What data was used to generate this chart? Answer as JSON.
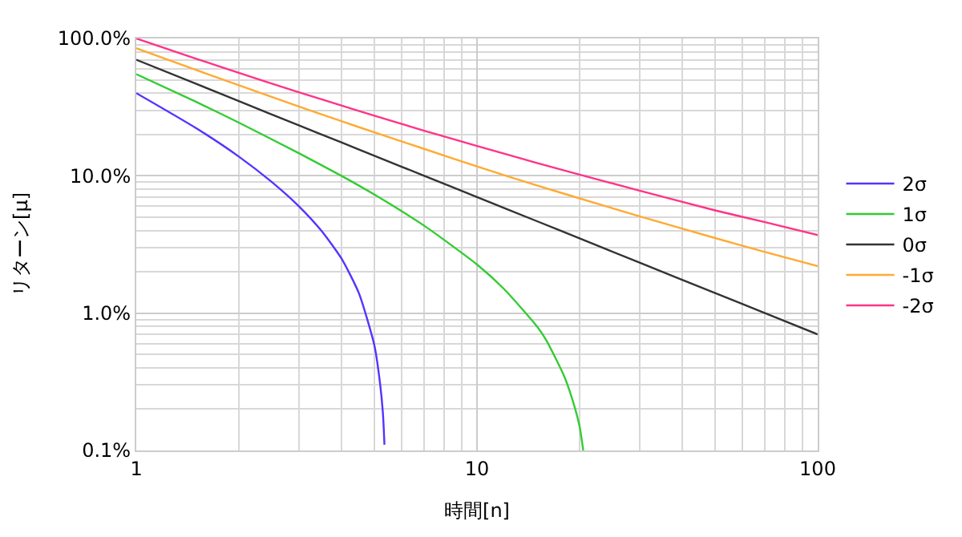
{
  "chart_data": {
    "type": "line",
    "xlabel": "時間[n]",
    "ylabel": "リターン[μ]",
    "log": "xy",
    "grid": true,
    "legend": "right",
    "marker": "none",
    "line_style": "solid",
    "xlim": [
      1,
      100
    ],
    "xticks": [
      1,
      10,
      100
    ],
    "ylim": [
      0.1,
      100
    ],
    "yticks": [
      {
        "value": 0.1,
        "label": "0.1%"
      },
      {
        "value": 1,
        "label": "1.0%"
      },
      {
        "value": 10,
        "label": "10.0%"
      },
      {
        "value": 100,
        "label": "100.0%"
      }
    ],
    "series": [
      {
        "name": "2σ",
        "color": "#5533ff",
        "x": [
          1,
          1.5,
          2,
          2.5,
          3,
          3.5,
          4,
          4.5,
          5,
          5.2,
          5.3,
          5.35
        ],
        "values": [
          40,
          22.2,
          13.8,
          9.0,
          6.0,
          3.96,
          2.5,
          1.4,
          0.58,
          0.3,
          0.18,
          0.11
        ]
      },
      {
        "name": "1σ",
        "color": "#33cc33",
        "x": [
          1,
          1.5,
          2,
          3,
          4,
          5,
          7,
          10,
          12,
          15,
          16,
          18,
          19,
          20,
          20.5
        ],
        "values": [
          55,
          34.5,
          24.4,
          14.6,
          10.0,
          7.3,
          4.33,
          2.26,
          1.5,
          0.8,
          0.63,
          0.35,
          0.24,
          0.15,
          0.1
        ]
      },
      {
        "name": "0σ",
        "color": "#333333",
        "x": [
          1,
          1.5,
          2,
          3,
          4,
          5,
          7,
          10,
          15,
          20,
          30,
          50,
          70,
          100
        ],
        "values": [
          70,
          46.7,
          35,
          23.3,
          17.5,
          14,
          10,
          7,
          4.67,
          3.5,
          2.33,
          1.4,
          1.0,
          0.7
        ]
      },
      {
        "name": "-1σ",
        "color": "#ffaa33",
        "x": [
          1,
          1.5,
          2,
          3,
          4,
          5,
          7,
          10,
          15,
          20,
          30,
          50,
          70,
          100
        ],
        "values": [
          85,
          58.9,
          45.6,
          32.0,
          25.0,
          20.7,
          15.7,
          11.7,
          8.5,
          6.85,
          5.07,
          3.52,
          2.79,
          2.2
        ]
      },
      {
        "name": "-2σ",
        "color": "#ff3388",
        "x": [
          1,
          1.5,
          2,
          3,
          4,
          5,
          7,
          10,
          15,
          20,
          30,
          50,
          70,
          100
        ],
        "values": [
          100,
          71.2,
          56.2,
          40.6,
          32.5,
          27.4,
          21.3,
          16.5,
          12.4,
          10.2,
          7.8,
          5.6,
          4.6,
          3.7
        ]
      }
    ]
  }
}
